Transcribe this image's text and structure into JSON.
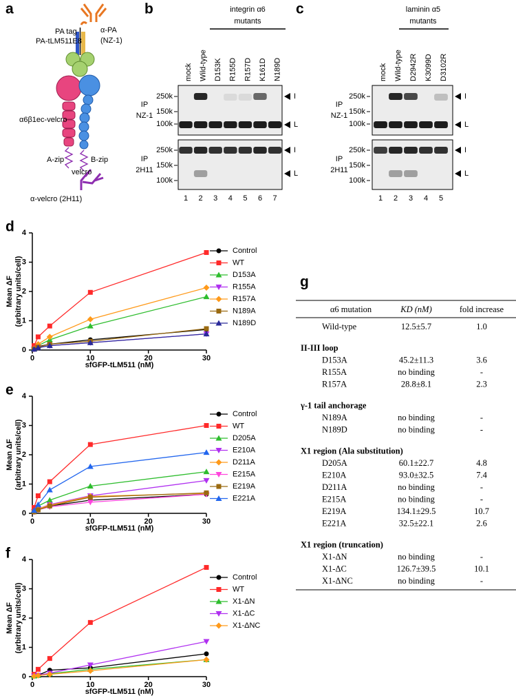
{
  "diagram": {
    "label": "a",
    "pa_tag": "PA tag",
    "anti_pa": [
      "α-PA",
      "(NZ-1)"
    ],
    "construct": "PA-tLM511E8",
    "integrin": "α6β1ec-velcro",
    "a_zip": "A-zip",
    "b_zip": "B-zip",
    "velcro": "velcro",
    "anti_velcro": "α-velcro (2H11)"
  },
  "gels": [
    {
      "label": "b",
      "title": [
        "integrin α6",
        "mutants"
      ],
      "lanes": [
        "mock",
        "Wild-type",
        "D153K",
        "R155D",
        "R157D",
        "K161D",
        "N189D"
      ],
      "lane_numbers": [
        "1",
        "2",
        "3",
        "4",
        "5",
        "6",
        "7"
      ],
      "blots": [
        {
          "ip": [
            "IP",
            "NZ-1"
          ],
          "markers": [
            "250k",
            "150k",
            "100k"
          ],
          "arrows": [
            "I",
            "L"
          ]
        },
        {
          "ip": [
            "IP",
            "2H11"
          ],
          "markers": [
            "250k",
            "150k",
            "100k"
          ],
          "arrows": [
            "I",
            "L"
          ]
        }
      ]
    },
    {
      "label": "c",
      "title": [
        "laminin α5",
        "mutants"
      ],
      "lanes": [
        "mock",
        "Wild-type",
        "D2942R",
        "K3099D",
        "D3102R"
      ],
      "lane_numbers": [
        "1",
        "2",
        "3",
        "4",
        "5"
      ],
      "blots": [
        {
          "ip": [
            "IP",
            "NZ-1"
          ],
          "markers": [
            "250k",
            "150k",
            "100k"
          ],
          "arrows": [
            "I",
            "L"
          ]
        },
        {
          "ip": [
            "IP",
            "2H11"
          ],
          "markers": [
            "250k",
            "150k",
            "100k"
          ],
          "arrows": [
            "I",
            "L"
          ]
        }
      ]
    }
  ],
  "chart_data": [
    {
      "type": "line",
      "panel": "d",
      "xlabel": "sfGFP-tLM511 (nM)",
      "ylabel": [
        "Mean ΔF",
        "(arbitrary units/cell)"
      ],
      "x": [
        0.3,
        1,
        3,
        10,
        30
      ],
      "xlim": [
        0,
        30
      ],
      "xticks": [
        0,
        10,
        20,
        30
      ],
      "ylim": [
        0,
        4
      ],
      "yticks": [
        0,
        1,
        2,
        3,
        4
      ],
      "series": [
        {
          "name": "Control",
          "color": "#000000",
          "marker": "circle",
          "values": [
            0.05,
            0.12,
            0.2,
            0.35,
            0.7
          ]
        },
        {
          "name": "WT",
          "color": "#ff2a2a",
          "marker": "square",
          "values": [
            0.15,
            0.45,
            0.82,
            1.97,
            3.33
          ]
        },
        {
          "name": "D153A",
          "color": "#2ebd2e",
          "marker": "triangle-up",
          "values": [
            0.05,
            0.15,
            0.35,
            0.82,
            1.82
          ]
        },
        {
          "name": "R155A",
          "color": "#b030f0",
          "marker": "triangle-down",
          "values": [
            0.03,
            0.08,
            0.15,
            0.25,
            0.55
          ]
        },
        {
          "name": "R157A",
          "color": "#ff9a1a",
          "marker": "diamond",
          "values": [
            0.05,
            0.2,
            0.45,
            1.05,
            2.13
          ]
        },
        {
          "name": "N189A",
          "color": "#9a6a10",
          "marker": "square",
          "values": [
            0.03,
            0.1,
            0.2,
            0.3,
            0.73
          ]
        },
        {
          "name": "N189D",
          "color": "#2a2a9a",
          "marker": "triangle-up",
          "values": [
            0.03,
            0.08,
            0.15,
            0.25,
            0.55
          ]
        }
      ]
    },
    {
      "type": "line",
      "panel": "e",
      "xlabel": "sfGFP-tLM511 (nM)",
      "ylabel": [
        "Mean ΔF",
        "(arbitrary units/cell)"
      ],
      "x": [
        0.3,
        1,
        3,
        10,
        30
      ],
      "xlim": [
        0,
        30
      ],
      "xticks": [
        0,
        10,
        20,
        30
      ],
      "ylim": [
        0,
        4
      ],
      "yticks": [
        0,
        1,
        2,
        3,
        4
      ],
      "series": [
        {
          "name": "Control",
          "color": "#000000",
          "marker": "circle",
          "values": [
            0.08,
            0.12,
            0.25,
            0.45,
            0.65
          ]
        },
        {
          "name": "WT",
          "color": "#ff2a2a",
          "marker": "square",
          "values": [
            0.2,
            0.6,
            1.08,
            2.35,
            3.0
          ]
        },
        {
          "name": "D205A",
          "color": "#2ebd2e",
          "marker": "triangle-up",
          "values": [
            0.1,
            0.25,
            0.45,
            0.93,
            1.42
          ]
        },
        {
          "name": "E210A",
          "color": "#b030f0",
          "marker": "triangle-down",
          "values": [
            0.05,
            0.15,
            0.3,
            0.6,
            1.12
          ]
        },
        {
          "name": "D211A",
          "color": "#ff9a1a",
          "marker": "diamond",
          "values": [
            0.05,
            0.15,
            0.28,
            0.58,
            0.68
          ]
        },
        {
          "name": "E215A",
          "color": "#ff44dd",
          "marker": "triangle-down",
          "values": [
            0.05,
            0.12,
            0.22,
            0.38,
            0.65
          ]
        },
        {
          "name": "E219A",
          "color": "#9a6a10",
          "marker": "square",
          "values": [
            0.05,
            0.12,
            0.25,
            0.55,
            0.7
          ]
        },
        {
          "name": "E221A",
          "color": "#2266ee",
          "marker": "triangle-up",
          "values": [
            0.1,
            0.3,
            0.8,
            1.6,
            2.08
          ]
        }
      ]
    },
    {
      "type": "line",
      "panel": "f",
      "xlabel": "sfGFP-tLM511 (nM)",
      "ylabel": [
        "Mean ΔF",
        "(arbitrary units/cell)"
      ],
      "x": [
        0.3,
        1,
        3,
        10,
        30
      ],
      "xlim": [
        0,
        30
      ],
      "xticks": [
        0,
        10,
        20,
        30
      ],
      "ylim": [
        0,
        4
      ],
      "yticks": [
        0,
        1,
        2,
        3,
        4
      ],
      "series": [
        {
          "name": "Control",
          "color": "#000000",
          "marker": "circle",
          "values": [
            0.03,
            0.05,
            0.22,
            0.3,
            0.78
          ]
        },
        {
          "name": "WT",
          "color": "#ff2a2a",
          "marker": "square",
          "values": [
            0.08,
            0.25,
            0.62,
            1.85,
            3.73
          ]
        },
        {
          "name": "X1-ΔN",
          "color": "#2ebd2e",
          "marker": "triangle-up",
          "values": [
            0.02,
            0.04,
            0.1,
            0.25,
            0.58
          ]
        },
        {
          "name": "X1-ΔC",
          "color": "#b030f0",
          "marker": "triangle-down",
          "values": [
            0.02,
            0.05,
            0.12,
            0.4,
            1.2
          ]
        },
        {
          "name": "X1-ΔNC",
          "color": "#ff9a1a",
          "marker": "diamond",
          "values": [
            0.02,
            0.04,
            0.08,
            0.2,
            0.58
          ]
        }
      ]
    }
  ],
  "table": {
    "label": "g",
    "header": [
      "α6 mutation",
      "KD (nM)",
      "fold increase"
    ],
    "first_row": [
      "Wild-type",
      "12.5±5.7",
      "1.0"
    ],
    "sections": [
      {
        "title": "II-III loop",
        "rows": [
          [
            "D153A",
            "45.2±11.3",
            "3.6"
          ],
          [
            "R155A",
            "no binding",
            "-"
          ],
          [
            "R157A",
            "28.8±8.1",
            "2.3"
          ]
        ]
      },
      {
        "title": "γ-1 tail anchorage",
        "rows": [
          [
            "N189A",
            "no binding",
            "-"
          ],
          [
            "N189D",
            "no binding",
            "-"
          ]
        ]
      },
      {
        "title": "X1 region (Ala substitution)",
        "rows": [
          [
            "D205A",
            "60.1±22.7",
            "4.8"
          ],
          [
            "E210A",
            "93.0±32.5",
            "7.4"
          ],
          [
            "D211A",
            "no binding",
            "-"
          ],
          [
            "E215A",
            "no binding",
            "-"
          ],
          [
            "E219A",
            "134.1±29.5",
            "10.7"
          ],
          [
            "E221A",
            "32.5±22.1",
            "2.6"
          ]
        ]
      },
      {
        "title": "X1 region (truncation)",
        "rows": [
          [
            "X1-ΔN",
            "no binding",
            "-"
          ],
          [
            "X1-ΔC",
            "126.7±39.5",
            "10.1"
          ],
          [
            "X1-ΔNC",
            "no binding",
            "-"
          ]
        ]
      }
    ]
  }
}
